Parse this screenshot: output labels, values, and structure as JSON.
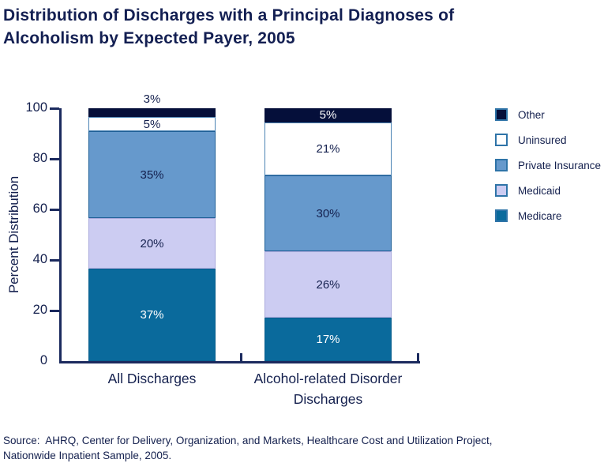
{
  "title": {
    "line1": "Distribution of Discharges with a Principal Diagnoses of",
    "line2": "Alcoholism by Expected Payer, 2005"
  },
  "source": {
    "line1": "Source:  AHRQ, Center for Delivery, Organization, and Markets, Healthcare Cost and Utilization Project,",
    "line2": "Nationwide Inpatient Sample, 2005."
  },
  "colors": {
    "text": "#14204E",
    "title_text": "#131F52",
    "axis": "#1B2A5E",
    "legend_swatch_border": "#2F74A8"
  },
  "chart_data": {
    "type": "bar",
    "stacked": true,
    "title": "",
    "xlabel": "",
    "ylabel": "Percent Distribution",
    "ylim": [
      0,
      100
    ],
    "yticks": [
      0,
      20,
      40,
      60,
      80,
      100
    ],
    "grid": false,
    "legend_position": "right",
    "categories": [
      "All Discharges",
      "Alcohol-related Disorder Discharges"
    ],
    "category_display_lines": [
      [
        "All Discharges"
      ],
      [
        "Alcohol-related Disorder",
        "Discharges"
      ]
    ],
    "legend_order_top_to_bottom": [
      "Other",
      "Uninsured",
      "Private Insurance",
      "Medicaid",
      "Medicare"
    ],
    "series": [
      {
        "name": "Medicare",
        "fill": "#0A6A9C",
        "border": "#075D8C",
        "values": [
          37,
          17
        ],
        "value_labels": [
          "37%",
          "17%"
        ],
        "label_colors": [
          "#FFFFFF",
          "#FFFFFF"
        ],
        "label_outside": [
          false,
          false
        ]
      },
      {
        "name": "Medicaid",
        "fill": "#CCCCF2",
        "border": "#A9A9DC",
        "values": [
          20,
          26
        ],
        "value_labels": [
          "20%",
          "26%"
        ],
        "label_colors": [
          "#14204E",
          "#14204E"
        ],
        "label_outside": [
          false,
          false
        ]
      },
      {
        "name": "Private Insurance",
        "fill": "#6699CC",
        "border": "#1E5F96",
        "values": [
          35,
          30
        ],
        "value_labels": [
          "35%",
          "30%"
        ],
        "label_colors": [
          "#14204E",
          "#14204E"
        ],
        "label_outside": [
          false,
          false
        ]
      },
      {
        "name": "Uninsured",
        "fill": "#FFFFFF",
        "border": "#4B83B4",
        "values": [
          5,
          21
        ],
        "value_labels": [
          "5%",
          "21%"
        ],
        "label_colors": [
          "#14204E",
          "#14204E"
        ],
        "label_outside": [
          false,
          false
        ]
      },
      {
        "name": "Other",
        "fill": "#050F3A",
        "border": "#050F3A",
        "values": [
          3,
          5
        ],
        "value_labels": [
          "3%",
          "5%"
        ],
        "label_colors": [
          "#14204E",
          "#FFFFFF"
        ],
        "label_outside": [
          true,
          false
        ]
      }
    ]
  }
}
